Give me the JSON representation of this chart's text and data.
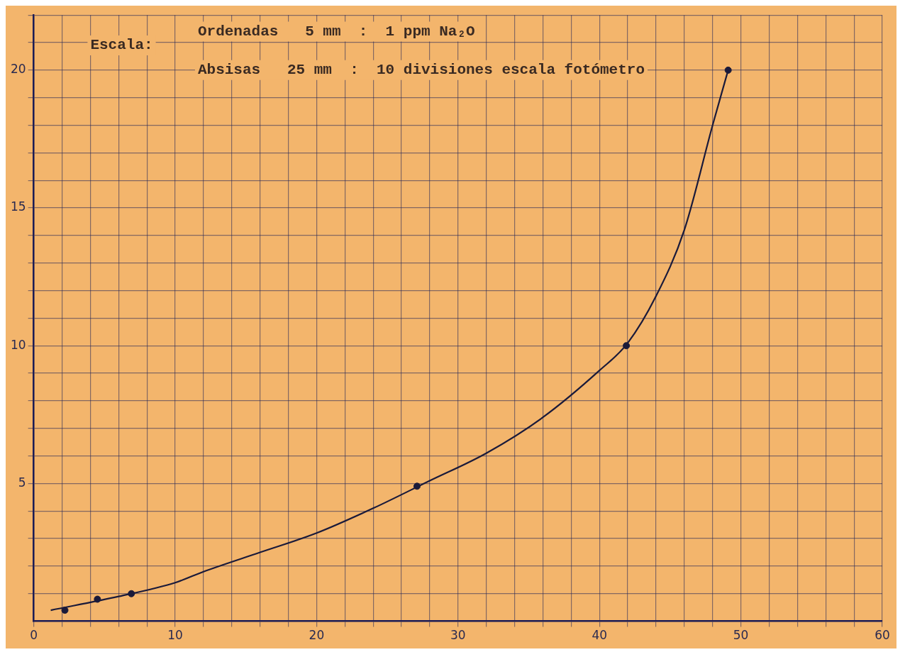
{
  "chart_data": {
    "type": "scatter",
    "annotations": [
      "Escala:",
      "Ordenadas   5 mm  :  1 ppm Na₂O",
      "Absisas   25 mm  :  10 divisiones escala fotómetro"
    ],
    "series": [
      {
        "color": "#1a1a3a",
        "marker": "circle",
        "x": [
          2.2,
          4.5,
          6.9,
          27.1,
          41.9,
          49.1
        ],
        "values": [
          0.4,
          0.8,
          1.0,
          4.9,
          10.0,
          20.0
        ]
      },
      {
        "type": "line",
        "color": "#1a1a3a",
        "marker": "none",
        "line_style": "solid",
        "x": [
          1.2,
          6,
          10,
          12,
          16,
          20,
          24,
          28,
          32,
          36,
          40,
          42,
          44,
          46,
          48,
          49.1
        ],
        "values": [
          0.4,
          0.9,
          1.4,
          1.8,
          2.5,
          3.2,
          4.1,
          5.1,
          6.1,
          7.4,
          9.1,
          10.1,
          11.8,
          14.2,
          18.0,
          20.0
        ]
      }
    ],
    "xlim": [
      0,
      60
    ],
    "xticks": [
      0,
      {
        "value": 2,
        "label": null
      },
      {
        "value": 4,
        "label": null
      },
      {
        "value": 6,
        "label": null
      },
      {
        "value": 8,
        "label": null
      },
      10,
      {
        "value": 12,
        "label": null
      },
      {
        "value": 14,
        "label": null
      },
      {
        "value": 16,
        "label": null
      },
      {
        "value": 18,
        "label": null
      },
      20,
      {
        "value": 22,
        "label": null
      },
      {
        "value": 24,
        "label": null
      },
      {
        "value": 26,
        "label": null
      },
      {
        "value": 28,
        "label": null
      },
      30,
      {
        "value": 32,
        "label": null
      },
      {
        "value": 34,
        "label": null
      },
      {
        "value": 36,
        "label": null
      },
      {
        "value": 38,
        "label": null
      },
      40,
      {
        "value": 42,
        "label": null
      },
      {
        "value": 44,
        "label": null
      },
      {
        "value": 46,
        "label": null
      },
      {
        "value": 48,
        "label": null
      },
      50,
      {
        "value": 52,
        "label": null
      },
      {
        "value": 54,
        "label": null
      },
      {
        "value": 56,
        "label": null
      },
      {
        "value": 58,
        "label": null
      },
      60
    ],
    "ylim": [
      0,
      22
    ],
    "yticks": [
      {
        "value": 1,
        "label": null
      },
      {
        "value": 2,
        "label": null
      },
      {
        "value": 3,
        "label": null
      },
      {
        "value": 4,
        "label": null
      },
      5,
      {
        "value": 6,
        "label": null
      },
      {
        "value": 7,
        "label": null
      },
      {
        "value": 8,
        "label": null
      },
      {
        "value": 9,
        "label": null
      },
      10,
      {
        "value": 11,
        "label": null
      },
      {
        "value": 12,
        "label": null
      },
      {
        "value": 13,
        "label": null
      },
      {
        "value": 14,
        "label": null
      },
      15,
      {
        "value": 16,
        "label": null
      },
      {
        "value": 17,
        "label": null
      },
      {
        "value": 18,
        "label": null
      },
      {
        "value": 19,
        "label": null
      },
      20,
      {
        "value": 21,
        "label": null
      },
      {
        "value": 22,
        "label": null
      }
    ],
    "grid": true,
    "legend": false
  }
}
